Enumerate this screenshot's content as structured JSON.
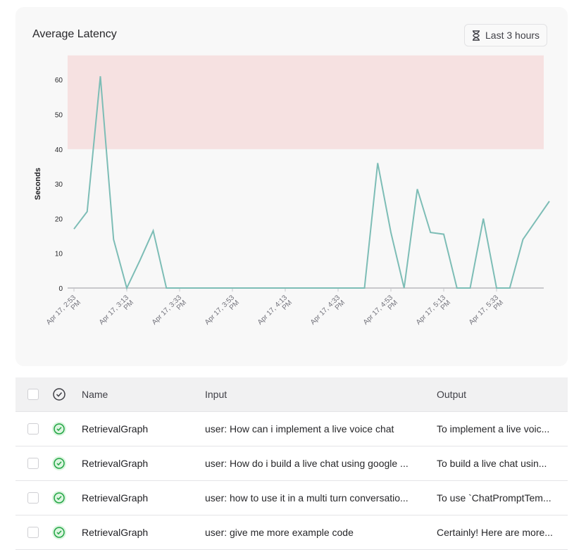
{
  "chart_card": {
    "title": "Average Latency",
    "time_range": {
      "label": "Last 3 hours",
      "icon": "hourglass-icon"
    }
  },
  "chart_data": {
    "type": "line",
    "title": "Average Latency",
    "ylabel": "Seconds",
    "xlabel": "",
    "ylim": [
      0,
      67
    ],
    "yticks": [
      0,
      10,
      20,
      30,
      40,
      50,
      60
    ],
    "threshold_band": {
      "from": 40,
      "to": 67,
      "color": "#f6e1e1"
    },
    "line_color": "#7dbdb6",
    "grid": false,
    "xtick_labels": [
      "Apr 17, 2:53 PM",
      "Apr 17, 3:13 PM",
      "Apr 17, 3:33 PM",
      "Apr 17, 3:53 PM",
      "Apr 17, 4:13 PM",
      "Apr 17, 4:33 PM",
      "Apr 17, 4:53 PM",
      "Apr 17, 5:13 PM",
      "Apr 17, 5:33 PM"
    ],
    "x_interval_minutes": 5,
    "x_start": "Apr 17, 2:53 PM",
    "values": [
      17,
      22,
      61,
      14,
      0,
      8,
      16.5,
      0,
      0,
      0,
      0,
      0,
      0,
      0,
      0,
      0,
      0,
      0,
      0,
      0,
      0,
      0,
      0,
      36,
      16,
      0,
      28.5,
      16,
      15.5,
      0,
      0,
      20,
      0,
      0,
      14,
      19.5,
      25
    ]
  },
  "table": {
    "columns": [
      "Name",
      "Input",
      "Output"
    ],
    "header_status_icon": "check-circle-icon",
    "rows": [
      {
        "name": "RetrievalGraph",
        "input": "user: How can i implement a live voice chat",
        "output": "To implement a live voic...",
        "status": "success"
      },
      {
        "name": "RetrievalGraph",
        "input": "user: How do i build a live chat using google ...",
        "output": "To build a live chat usin...",
        "status": "success"
      },
      {
        "name": "RetrievalGraph",
        "input": "user: how to use it in a multi turn conversatio...",
        "output": "To use `ChatPromptTem...",
        "status": "success"
      },
      {
        "name": "RetrievalGraph",
        "input": "user: give me more example code",
        "output": "Certainly! Here are more...",
        "status": "success"
      }
    ]
  }
}
